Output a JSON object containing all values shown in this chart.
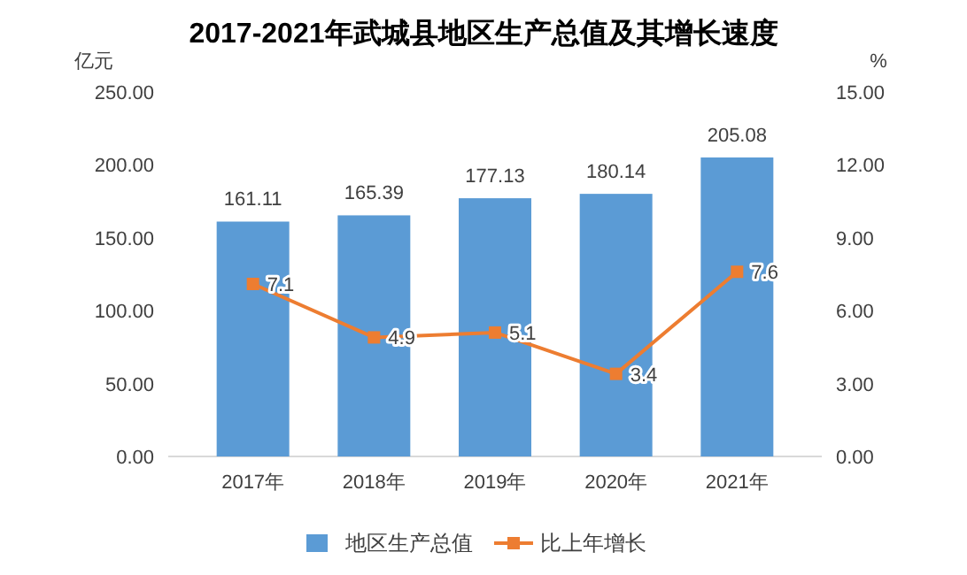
{
  "chart_data": {
    "type": "bar",
    "title": "2017-2021年武城县地区生产总值及其增长速度",
    "ylabel": "亿元",
    "y2label": "%",
    "categories": [
      "2017年",
      "2018年",
      "2019年",
      "2020年",
      "2021年"
    ],
    "series": [
      {
        "name": "地区生产总值",
        "color": "#5b9bd5",
        "values": [
          161.11,
          165.39,
          177.13,
          180.14,
          205.08
        ]
      },
      {
        "name": "比上年增长",
        "type": "line",
        "axis": "y2",
        "color": "#ed7d31",
        "marker": "square",
        "values": [
          7.1,
          4.9,
          5.1,
          3.4,
          7.6
        ]
      }
    ],
    "ylim": [
      0,
      250
    ],
    "yticks": [
      {
        "value": 0,
        "label": "0.00"
      },
      {
        "value": 50,
        "label": "50.00"
      },
      {
        "value": 100,
        "label": "100.00"
      },
      {
        "value": 150,
        "label": "150.00"
      },
      {
        "value": 200,
        "label": "200.00"
      },
      {
        "value": 250,
        "label": "250.00"
      }
    ],
    "y2lim": [
      0,
      15
    ],
    "y2ticks": [
      {
        "value": 0,
        "label": "0.00"
      },
      {
        "value": 3,
        "label": "3.00"
      },
      {
        "value": 6,
        "label": "6.00"
      },
      {
        "value": 9,
        "label": "9.00"
      },
      {
        "value": 12,
        "label": "12.00"
      },
      {
        "value": 15,
        "label": "15.00"
      }
    ],
    "data_labels": true,
    "legend": "bottom"
  }
}
